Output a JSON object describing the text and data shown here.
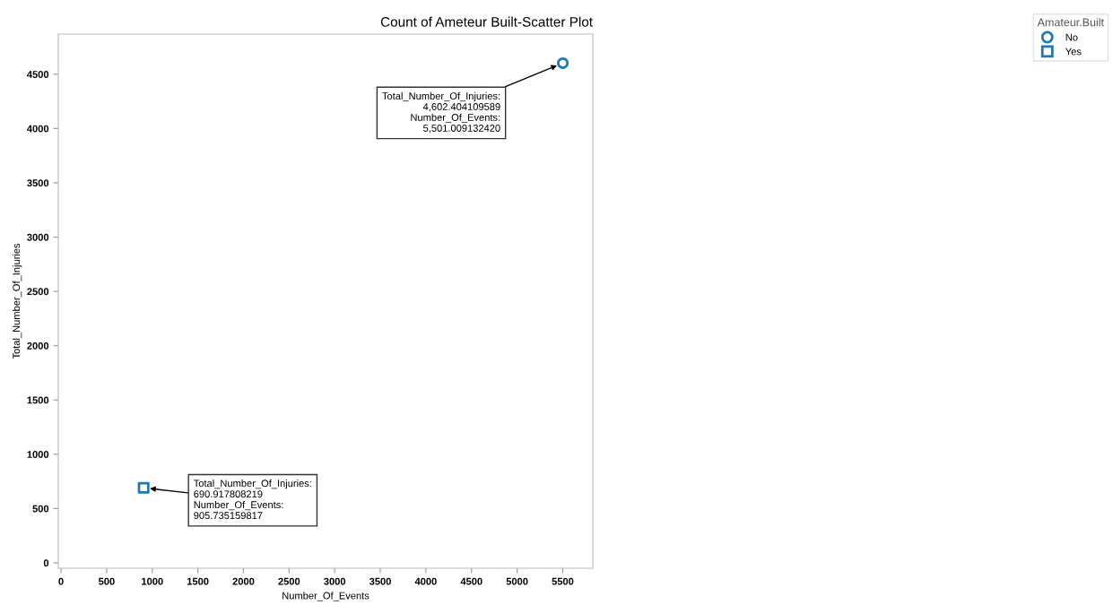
{
  "chart_data": {
    "type": "scatter",
    "title": "Count of Ameteur Built-Scatter Plot",
    "xlabel": "Number_Of_Events",
    "ylabel": "Total_Number_Of_Injuries",
    "legend_title": "Amateur.Built",
    "series": [
      {
        "name": "No",
        "color": "#1f77b4",
        "marker": "circle",
        "x": [
          5501.00913242
        ],
        "values": [
          4602.404109589
        ]
      },
      {
        "name": "Yes",
        "color": "#1f77b4",
        "marker": "square",
        "x": [
          905.735159817
        ],
        "values": [
          690.917808219
        ]
      }
    ],
    "annotations": [
      {
        "text": "Total_Number_Of_Injuries:\n4,602.404109589\nNumber_Of_Events:\n5,501.009132420",
        "x": 5501.00913242,
        "y": 4602.404109589
      },
      {
        "text": "Total_Number_Of_Injuries:\n690.917808219\nNumber_Of_Events:\n905.735159817",
        "x": 905.735159817,
        "y": 690.917808219
      }
    ],
    "xlim": [
      -30,
      5830
    ],
    "ylim": [
      -50,
      4870
    ],
    "xticks": [
      0,
      500,
      1000,
      1500,
      2000,
      2500,
      3000,
      3500,
      4000,
      4500,
      5000,
      5500
    ],
    "yticks": [
      0,
      500,
      1000,
      1500,
      2000,
      2500,
      3000,
      3500,
      4000,
      4500
    ],
    "grid": false,
    "legend": "top right"
  }
}
